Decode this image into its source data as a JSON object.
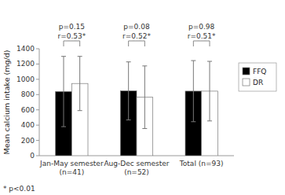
{
  "chart_data": {
    "type": "bar",
    "categories": [
      "Jan-May semester\n(n=41)",
      "Aug-Dec semester\n(n=52)",
      "Total (n=93)"
    ],
    "series": [
      {
        "name": "FFQ",
        "color": "#000000",
        "values": [
          840,
          848,
          845
        ],
        "errors": [
          460,
          380,
          400
        ]
      },
      {
        "name": "DR",
        "color": "#ffffff",
        "values": [
          945,
          765,
          845
        ],
        "errors": [
          355,
          410,
          390
        ]
      }
    ],
    "ylabel": "Mean calcium intake (mg/d)",
    "ylim": [
      0,
      1400
    ],
    "yticks": [
      0,
      200,
      400,
      600,
      800,
      1000,
      1200,
      1400
    ],
    "annotations": [
      {
        "p": "p=0.15",
        "r": "r=0.53*"
      },
      {
        "p": "p=0.08",
        "r": "r=0.52*"
      },
      {
        "p": "p=0.98",
        "r": "r=0.51*"
      }
    ],
    "footnote": "* p<0.01",
    "legend": "right",
    "grid": false
  }
}
